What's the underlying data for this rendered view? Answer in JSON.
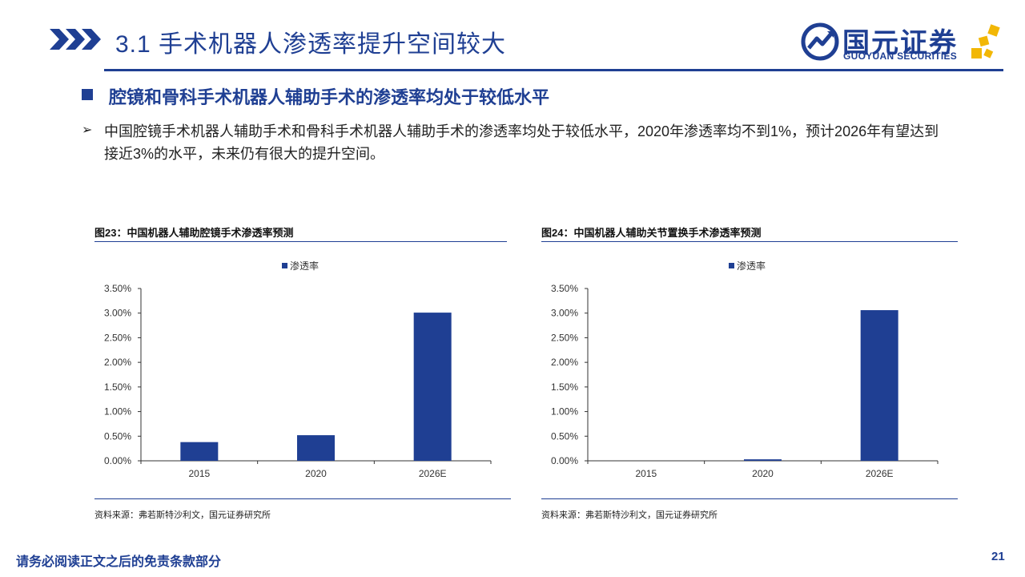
{
  "header": {
    "title": "3.1 手术机器人渗透率提升空间较大",
    "logo_cn": "国元证券",
    "logo_en": "GUOYUAN SECURITIES",
    "accent_color": "#1f3f93",
    "logo_accent_color": "#f2b705"
  },
  "section": {
    "subtitle": "腔镜和骨科手术机器人辅助手术的渗透率均处于较低水平",
    "bullet_text": "中国腔镜手术机器人辅助手术和骨科手术机器人辅助手术的渗透率均处于较低水平，2020年渗透率均不到1%，预计2026年有望达到接近3%的水平，未来仍有很大的提升空间。"
  },
  "charts": [
    {
      "title": "图23：中国机器人辅助腔镜手术渗透率预测",
      "source": "资料来源：弗若斯特沙利文，国元证券研究所"
    },
    {
      "title": "图24：中国机器人辅助关节置换手术渗透率预测",
      "source": "资料来源：弗若斯特沙利文，国元证券研究所"
    }
  ],
  "chart_data": [
    {
      "type": "bar",
      "title": "图23：中国机器人辅助腔镜手术渗透率预测",
      "categories": [
        "2015",
        "2020",
        "2026E"
      ],
      "series": [
        {
          "name": "渗透率",
          "values": [
            0.0038,
            0.0052,
            0.0301
          ],
          "color": "#1f3f93"
        }
      ],
      "ylim": [
        0,
        0.035
      ],
      "yticks": [
        "0.00%",
        "0.50%",
        "1.00%",
        "1.50%",
        "2.00%",
        "2.50%",
        "3.00%",
        "3.50%"
      ],
      "legend": "top-center",
      "grid": false
    },
    {
      "type": "bar",
      "title": "图24：中国机器人辅助关节置换手术渗透率预测",
      "categories": [
        "2015",
        "2020",
        "2026E"
      ],
      "series": [
        {
          "name": "渗透率",
          "values": [
            0.0,
            0.0003,
            0.0306
          ],
          "color": "#1f3f93"
        }
      ],
      "ylim": [
        0,
        0.035
      ],
      "yticks": [
        "0.00%",
        "0.50%",
        "1.00%",
        "1.50%",
        "2.00%",
        "2.50%",
        "3.00%",
        "3.50%"
      ],
      "legend": "top-center",
      "grid": false
    }
  ],
  "footer": {
    "note": "请务必阅读正文之后的免责条款部分",
    "page": "21"
  }
}
